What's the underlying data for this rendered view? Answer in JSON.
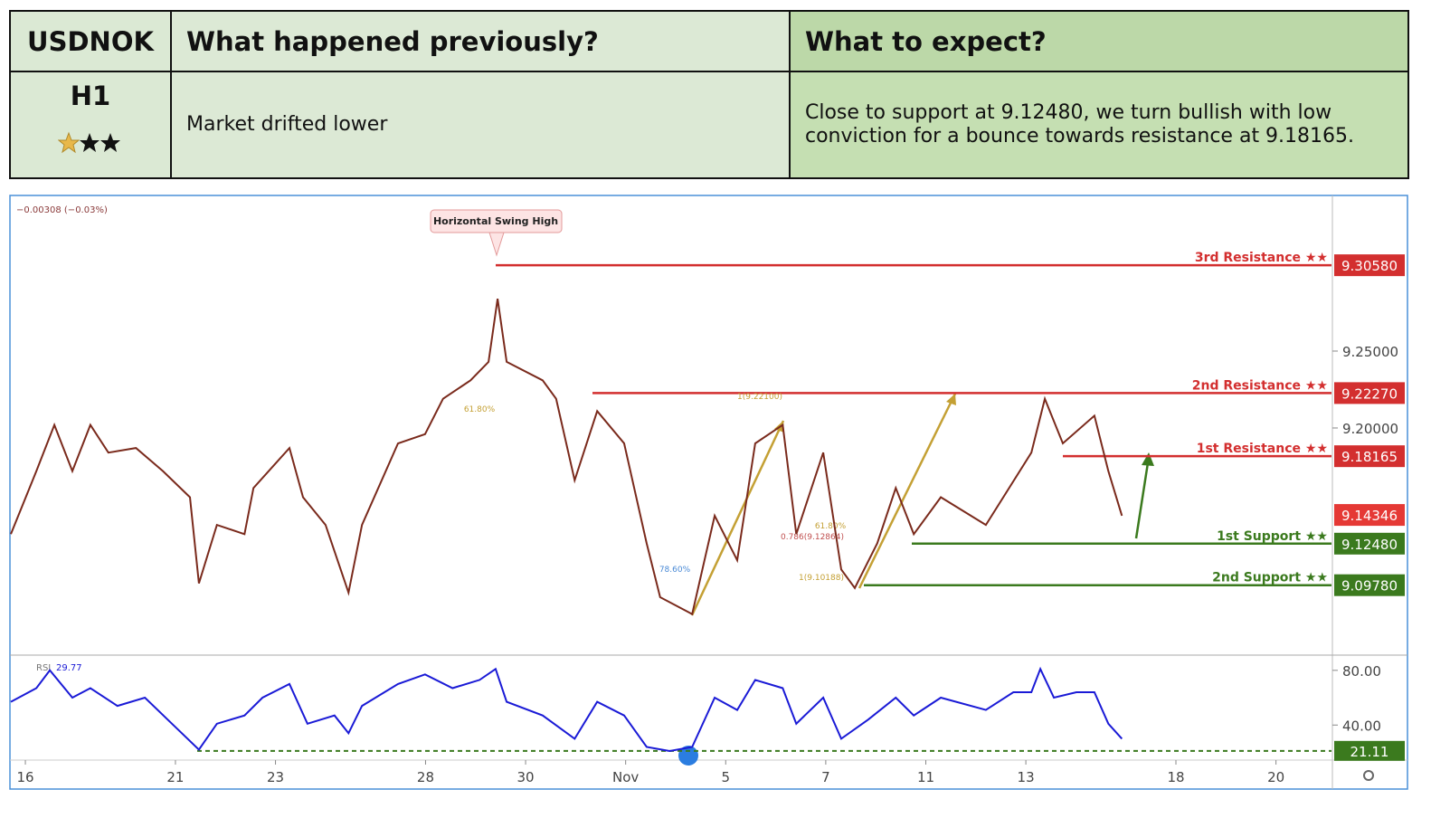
{
  "header": {
    "symbol": "USDNOK",
    "timeframe": "H1",
    "previous_title": "What happened previously?",
    "expect_title": "What to expect?",
    "previous_text": "Market drifted lower",
    "expect_text": "Close to support at 9.12480, we turn bullish with low conviction for a bounce towards resistance at 9.18165."
  },
  "chart_data": [
    {
      "type": "line",
      "change_label": "−0.00308 (−0.03%)",
      "x": [
        -0.29,
        0.22,
        0.58,
        0.94,
        1.3,
        1.66,
        2.21,
        2.75,
        3.29,
        3.47,
        3.83,
        4.38,
        4.56,
        5.28,
        5.55,
        6.0,
        6.46,
        6.73,
        7.45,
        7.99,
        8.35,
        8.9,
        9.26,
        9.44,
        9.62,
        10.34,
        10.61,
        10.98,
        11.43,
        11.97,
        12.42,
        12.69,
        13.33,
        13.78,
        14.23,
        14.59,
        15.14,
        15.41,
        15.95,
        16.31,
        16.58,
        17.03,
        17.4,
        17.76,
        18.3,
        19.2,
        20.11,
        20.38,
        20.74,
        21.37,
        21.65,
        21.92
      ],
      "series": [
        {
          "name": "USDNOK",
          "color": "#7a2a1c",
          "values": [
            9.131,
            9.172,
            9.202,
            9.172,
            9.202,
            9.184,
            9.187,
            9.172,
            9.155,
            9.099,
            9.137,
            9.131,
            9.161,
            9.187,
            9.155,
            9.137,
            9.093,
            9.137,
            9.19,
            9.196,
            9.219,
            9.231,
            9.243,
            9.284,
            9.243,
            9.231,
            9.219,
            9.166,
            9.211,
            9.19,
            9.125,
            9.09,
            9.079,
            9.143,
            9.114,
            9.19,
            9.202,
            9.131,
            9.184,
            9.108,
            9.096,
            9.125,
            9.161,
            9.131,
            9.155,
            9.137,
            9.184,
            9.219,
            9.19,
            9.208,
            9.172,
            9.143
          ]
        }
      ],
      "levels": [
        {
          "name": "3rd Resistance ★★",
          "value": 9.3058,
          "value_label": "9.30580",
          "color": "#d32f2f"
        },
        {
          "name": "2nd Resistance ★★",
          "value": 9.2227,
          "value_label": "9.22270",
          "color": "#d32f2f"
        },
        {
          "name": "1st Resistance ★★",
          "value": 9.18165,
          "value_label": "9.18165",
          "color": "#d32f2f"
        },
        {
          "name": "1st Support ★★",
          "value": 9.1248,
          "value_label": "9.12480",
          "color": "#3b7a1e"
        },
        {
          "name": "2nd Support ★★",
          "value": 9.0978,
          "value_label": "9.09780",
          "color": "#3b7a1e"
        }
      ],
      "current": {
        "value": 9.14346,
        "value_label": "9.14346",
        "color": "#e53935"
      },
      "annotations": [
        "Horizontal Swing High",
        "61.80%",
        "1(9.22100)",
        "78.60%",
        "0.786(9.12864)",
        "61.80%",
        "1(9.10188)"
      ],
      "xlim": [
        -0.29,
        26.11
      ],
      "ylim": [
        9.0535,
        9.35
      ],
      "yticks": [
        {
          "value": 9.25,
          "label": "9.25000"
        },
        {
          "value": 9.2,
          "label": "9.20000"
        }
      ]
    },
    {
      "type": "line",
      "indicator": "RSI",
      "indicator_value": "29.77",
      "x": [
        -0.29,
        0.22,
        0.49,
        0.94,
        1.3,
        1.84,
        2.39,
        2.93,
        3.47,
        3.83,
        4.38,
        4.74,
        5.28,
        5.64,
        6.18,
        6.46,
        6.73,
        7.45,
        7.99,
        8.54,
        9.08,
        9.4,
        9.62,
        10.34,
        10.98,
        11.43,
        11.97,
        12.42,
        12.88,
        13.33,
        13.78,
        14.23,
        14.59,
        15.14,
        15.41,
        15.95,
        16.31,
        16.85,
        17.4,
        17.76,
        18.3,
        19.2,
        19.75,
        20.11,
        20.29,
        20.56,
        21.01,
        21.37,
        21.65,
        21.92
      ],
      "series": [
        {
          "name": "RSI",
          "color": "#1a1ad6",
          "values": [
            57,
            67,
            80,
            60,
            67,
            54,
            60,
            41,
            22,
            41,
            47,
            60,
            70,
            41,
            47,
            34,
            54,
            70,
            77,
            67,
            73,
            81,
            57,
            47,
            30,
            57,
            47,
            24,
            21,
            24,
            60,
            51,
            73,
            67,
            41,
            60,
            30,
            44,
            60,
            47,
            60,
            51,
            64,
            64,
            81,
            60,
            64,
            64,
            41,
            30
          ]
        }
      ],
      "level": {
        "value": 21.11,
        "color": "#3b7a1e"
      },
      "xlim": [
        -0.29,
        26.11
      ],
      "ylim": [
        15.7,
        89.8
      ],
      "yticks": [
        {
          "value": 80,
          "label": "80.00"
        },
        {
          "value": 40,
          "label": "40.00"
        }
      ],
      "xticks": [
        {
          "value": 0,
          "label": "16"
        },
        {
          "value": 3,
          "label": "21"
        },
        {
          "value": 5,
          "label": "23"
        },
        {
          "value": 8,
          "label": "28"
        },
        {
          "value": 10,
          "label": "30"
        },
        {
          "value": 12,
          "label": "Nov"
        },
        {
          "value": 14,
          "label": "5"
        },
        {
          "value": 16,
          "label": "7"
        },
        {
          "value": 18,
          "label": "11"
        },
        {
          "value": 20,
          "label": "13"
        },
        {
          "value": 23,
          "label": "18"
        },
        {
          "value": 25,
          "label": "20"
        }
      ]
    }
  ]
}
